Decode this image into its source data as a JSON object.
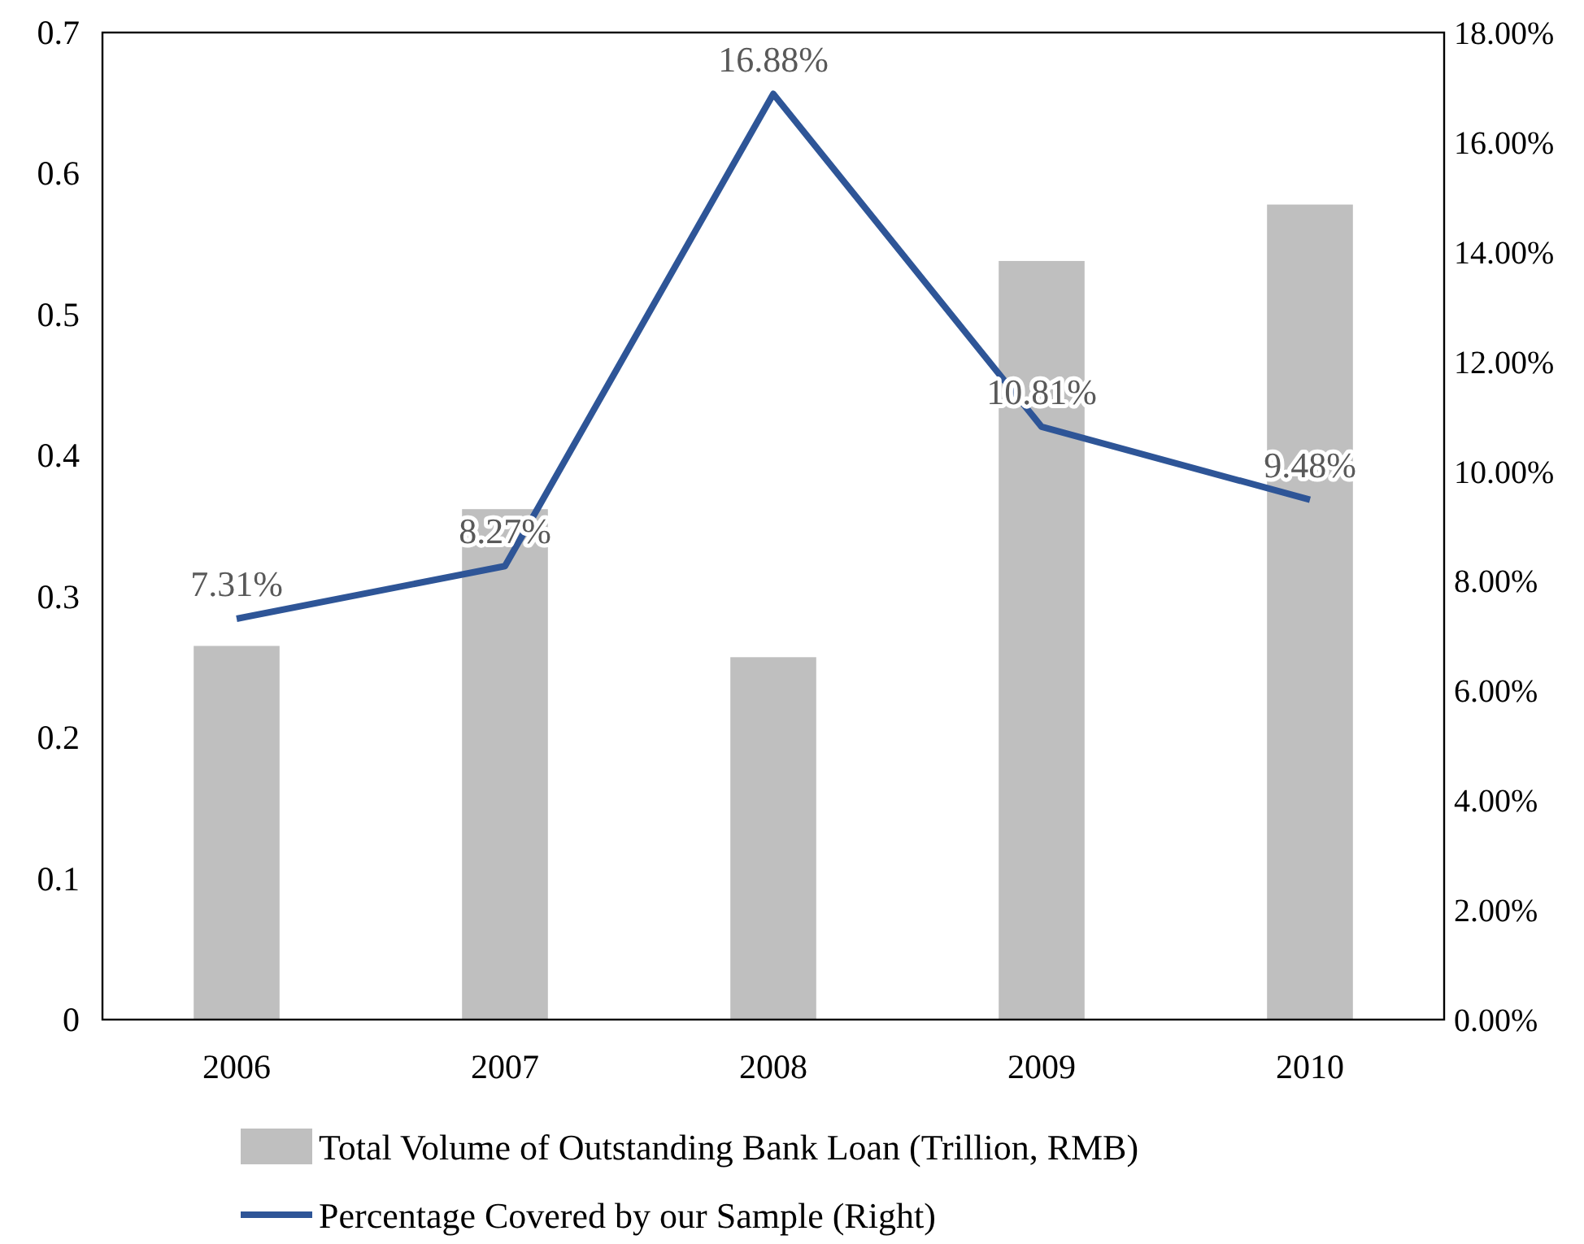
{
  "chart_data": {
    "type": "bar",
    "categories": [
      "2006",
      "2007",
      "2008",
      "2009",
      "2010"
    ],
    "series": [
      {
        "name": "Total Volume of Outstanding Bank Loan (Trillion, RMB)",
        "color": "#bfbfbf",
        "values": [
          0.265,
          0.362,
          0.257,
          0.538,
          0.578
        ]
      },
      {
        "name": "Percentage Covered by our Sample (Right)",
        "type": "line",
        "axis": "y2",
        "color": "#2e5597",
        "values": [
          7.31,
          8.27,
          16.88,
          10.81,
          9.48
        ],
        "value_labels": [
          "7.31%",
          "8.27%",
          "16.88%",
          "10.81%",
          "9.48%"
        ]
      }
    ],
    "ylim": [
      0,
      0.7
    ],
    "yticks": [
      0,
      0.1,
      0.2,
      0.3,
      0.4,
      0.5,
      0.6,
      0.7
    ],
    "y2lim": [
      0,
      18
    ],
    "y2ticks": [
      {
        "value": 0,
        "label": "0.00%"
      },
      {
        "value": 2,
        "label": "2.00%"
      },
      {
        "value": 4,
        "label": "4.00%"
      },
      {
        "value": 6,
        "label": "6.00%"
      },
      {
        "value": 8,
        "label": "8.00%"
      },
      {
        "value": 10,
        "label": "10.00%"
      },
      {
        "value": 12,
        "label": "12.00%"
      },
      {
        "value": 14,
        "label": "14.00%"
      },
      {
        "value": 16,
        "label": "16.00%"
      },
      {
        "value": 18,
        "label": "18.00%"
      }
    ],
    "grid": false,
    "legend": "bottom",
    "marker": "none",
    "line_style": "solid"
  }
}
